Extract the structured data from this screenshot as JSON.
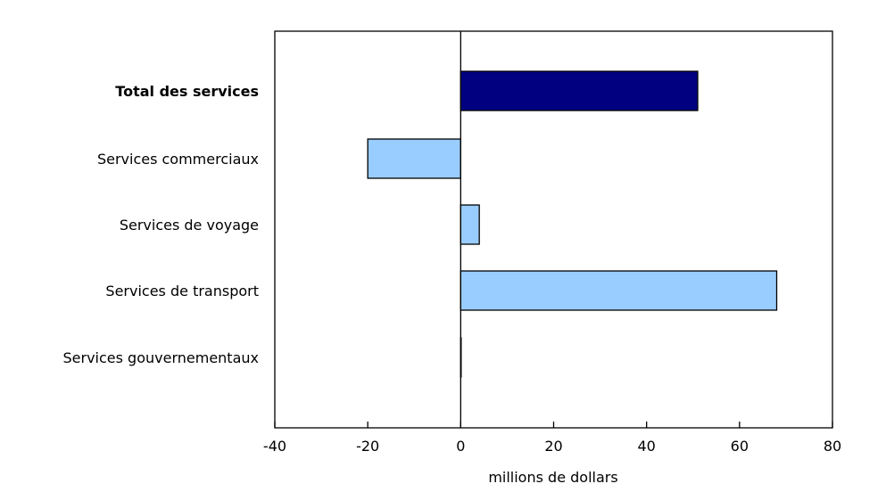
{
  "chart_data": {
    "type": "bar",
    "orientation": "horizontal",
    "categories": [
      "Total des services",
      "Services commerciaux",
      "Services de voyage",
      "Services de transport",
      "Services gouvernementaux"
    ],
    "values": [
      51,
      -20,
      4,
      68,
      0
    ],
    "bold_categories": [
      "Total des services"
    ],
    "colors": [
      "#000080",
      "#99ccff",
      "#99ccff",
      "#99ccff",
      "#99ccff"
    ],
    "xlabel": "millions de dollars",
    "xlim": [
      -40,
      80
    ],
    "xticks": [
      -40,
      -20,
      0,
      20,
      40,
      60,
      80
    ],
    "grid": false
  }
}
